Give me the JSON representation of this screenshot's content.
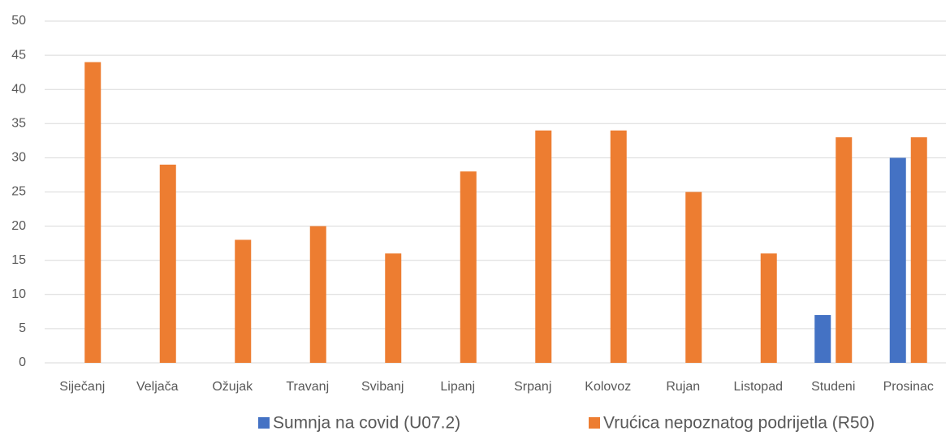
{
  "chart_data": {
    "type": "bar",
    "categories": [
      "Siječanj",
      "Veljača",
      "Ožujak",
      "Travanj",
      "Svibanj",
      "Lipanj",
      "Srpanj",
      "Kolovoz",
      "Rujan",
      "Listopad",
      "Studeni",
      "Prosinac"
    ],
    "series": [
      {
        "name": "Sumnja na covid (U07.2)",
        "color": "#4472c4",
        "values": [
          0,
          0,
          0,
          0,
          0,
          0,
          0,
          0,
          0,
          0,
          7,
          30
        ]
      },
      {
        "name": "Vrućica nepoznatog podrijetla (R50)",
        "color": "#ed7d31",
        "values": [
          44,
          29,
          18,
          20,
          16,
          28,
          34,
          34,
          25,
          16,
          33,
          33
        ]
      }
    ],
    "ylim": [
      0,
      50
    ],
    "yticks": [
      0,
      5,
      10,
      15,
      20,
      25,
      30,
      35,
      40,
      45,
      50
    ],
    "grid": true,
    "legend": "bottom"
  }
}
